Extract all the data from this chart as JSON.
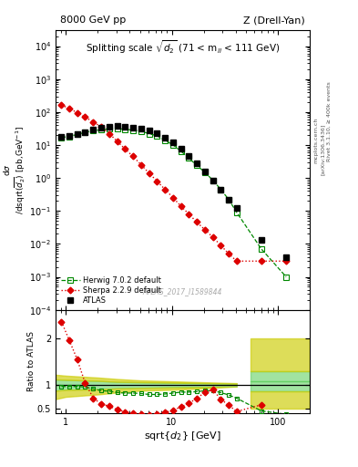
{
  "title_left": "8000 GeV pp",
  "title_right": "Z (Drell-Yan)",
  "plot_title": "Splitting scale $\\sqrt{d_2}$ (71 < m$_{ll}$ < 111 GeV)",
  "ylabel_main": "d$\\sigma$\n/dsqrt($d_2$) [pb,GeV$^{-1}$]",
  "ylabel_ratio": "Ratio to ATLAS",
  "xlabel": "sqrt{$d_2$} [GeV]",
  "watermark": "ATLAS_2017_I1589844",
  "right_label": "Rivet 3.1.10, ≥ 400k events",
  "right_label2": "[arXiv:1306.3436]",
  "right_label3": "mcplots.cern.ch",
  "atlas_x": [
    0.91,
    1.08,
    1.28,
    1.52,
    1.82,
    2.16,
    2.57,
    3.06,
    3.63,
    4.32,
    5.14,
    6.11,
    7.26,
    8.63,
    10.3,
    12.2,
    14.5,
    17.2,
    20.5,
    24.4,
    29.0,
    34.5,
    41.0,
    70.0,
    120.0
  ],
  "atlas_y": [
    18,
    19,
    22,
    25,
    30,
    33,
    36,
    37,
    36,
    34,
    32,
    28,
    23,
    17,
    12,
    7.5,
    4.5,
    2.7,
    1.6,
    0.85,
    0.45,
    0.22,
    0.12,
    0.013,
    0.004
  ],
  "herwig_x": [
    0.91,
    1.08,
    1.28,
    1.52,
    1.82,
    2.16,
    2.57,
    3.06,
    3.63,
    4.32,
    5.14,
    6.11,
    7.26,
    8.63,
    10.3,
    12.2,
    14.5,
    17.2,
    20.5,
    24.4,
    29.0,
    34.5,
    41.0,
    70.0,
    120.0
  ],
  "herwig_y": [
    17,
    18,
    21,
    24,
    27,
    29,
    31,
    31,
    30,
    28,
    26,
    22,
    19,
    14,
    10.0,
    6.5,
    4.0,
    2.4,
    1.5,
    0.85,
    0.45,
    0.22,
    0.09,
    0.007,
    0.001
  ],
  "sherpa_x": [
    0.91,
    1.08,
    1.28,
    1.52,
    1.82,
    2.16,
    2.57,
    3.06,
    3.63,
    4.32,
    5.14,
    6.11,
    7.26,
    8.63,
    10.3,
    12.2,
    14.5,
    17.2,
    20.5,
    24.4,
    29.0,
    34.5,
    41.0,
    70.0,
    120.0
  ],
  "sherpa_y": [
    160,
    130,
    95,
    70,
    50,
    35,
    22,
    13,
    7.5,
    4.5,
    2.5,
    1.4,
    0.8,
    0.45,
    0.25,
    0.14,
    0.08,
    0.046,
    0.027,
    0.016,
    0.009,
    0.005,
    0.003,
    0.003,
    0.003
  ],
  "herwig_ratio_x": [
    0.91,
    1.08,
    1.28,
    1.52,
    1.82,
    2.16,
    2.57,
    3.06,
    3.63,
    4.32,
    5.14,
    6.11,
    7.26,
    8.63,
    10.3,
    12.2,
    14.5,
    17.2,
    20.5,
    24.4,
    29.0,
    34.5,
    41.0,
    70.0,
    120.0
  ],
  "herwig_ratio_y": [
    0.97,
    0.97,
    0.97,
    0.96,
    0.92,
    0.88,
    0.87,
    0.84,
    0.83,
    0.83,
    0.82,
    0.8,
    0.8,
    0.81,
    0.83,
    0.85,
    0.85,
    0.86,
    0.88,
    0.88,
    0.84,
    0.79,
    0.72,
    0.45,
    0.38
  ],
  "sherpa_ratio_x": [
    0.91,
    1.08,
    1.28,
    1.52,
    1.82,
    2.16,
    2.57,
    3.06,
    3.63,
    4.32,
    5.14,
    6.11,
    7.26,
    8.63,
    10.3,
    12.2,
    14.5,
    17.2,
    20.5,
    24.4,
    29.0,
    34.5,
    41.0,
    70.0
  ],
  "sherpa_ratio_y": [
    2.35,
    1.95,
    1.55,
    1.05,
    0.72,
    0.6,
    0.55,
    0.48,
    0.43,
    0.4,
    0.38,
    0.37,
    0.39,
    0.42,
    0.46,
    0.54,
    0.61,
    0.72,
    0.84,
    0.9,
    0.7,
    0.57,
    0.44,
    0.58
  ],
  "atlas_color": "#000000",
  "herwig_color": "#008800",
  "sherpa_color": "#dd0000",
  "green_band_color": "#55cc55",
  "yellow_band_color": "#cccc00",
  "xlim": [
    0.8,
    200
  ],
  "ylim_main": [
    0.0001,
    30000.0
  ],
  "ylim_ratio": [
    0.4,
    2.6
  ]
}
